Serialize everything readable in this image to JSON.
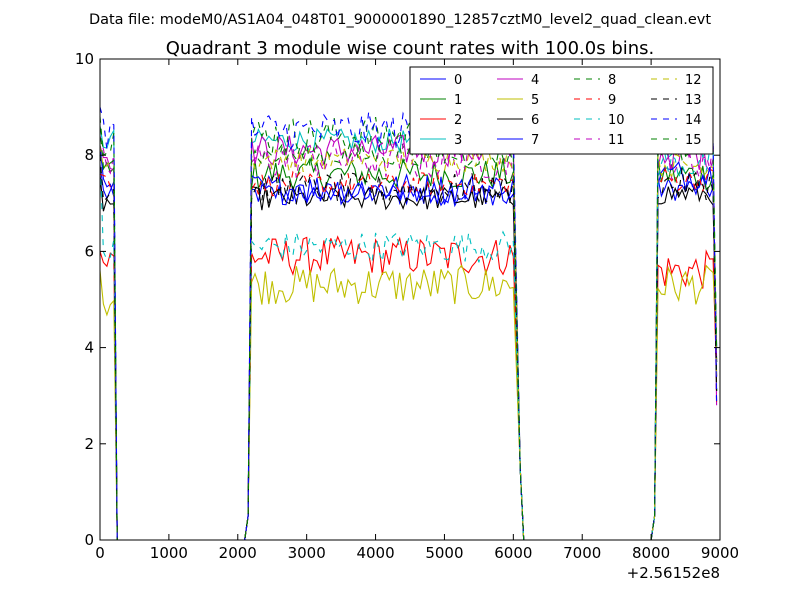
{
  "chart_data": {
    "type": "line",
    "suptitle": "Data file: modeM0/AS1A04_048T01_9000001890_12857cztM0_level2_quad_clean.evt",
    "title": "Quadrant 3 module wise count rates with 100.0s bins.",
    "xlabel": "",
    "ylabel": "",
    "x_offset_label": "+2.56152e8",
    "xlim": [
      0,
      9000
    ],
    "ylim": [
      0,
      10
    ],
    "xticks": [
      0,
      1000,
      2000,
      3000,
      4000,
      5000,
      6000,
      7000,
      8000,
      9000
    ],
    "yticks": [
      0,
      2,
      4,
      6,
      8,
      10
    ],
    "grid": false,
    "legend": {
      "position": "top-right",
      "columns": 4
    },
    "segments": [
      {
        "start": 0,
        "end": 200,
        "step": 50
      },
      {
        "start": 2200,
        "end": 6000,
        "step": 50
      },
      {
        "start": 8100,
        "end": 8900,
        "step": 50
      }
    ],
    "series": [
      {
        "name": "0",
        "color": "#0000ff",
        "dash": "solid",
        "levels": [
          7.8,
          7.2,
          7.2,
          7.3
        ]
      },
      {
        "name": "1",
        "color": "#008000",
        "dash": "solid",
        "levels": [
          8.0,
          7.6,
          7.6,
          7.6
        ]
      },
      {
        "name": "2",
        "color": "#ff0000",
        "dash": "solid",
        "levels": [
          6.0,
          5.8,
          5.9,
          5.6
        ]
      },
      {
        "name": "3",
        "color": "#00bfbf",
        "dash": "solid",
        "levels": [
          8.6,
          8.3,
          8.3,
          8.2
        ]
      },
      {
        "name": "4",
        "color": "#bf00bf",
        "dash": "solid",
        "levels": [
          8.2,
          8.0,
          8.1,
          8.0
        ]
      },
      {
        "name": "5",
        "color": "#bfbf00",
        "dash": "solid",
        "levels": [
          5.6,
          5.0,
          5.3,
          5.3
        ]
      },
      {
        "name": "6",
        "color": "#000000",
        "dash": "solid",
        "levels": [
          7.6,
          7.0,
          7.1,
          7.2
        ]
      },
      {
        "name": "7",
        "color": "#0000ff",
        "dash": "solid",
        "levels": [
          8.2,
          7.2,
          7.3,
          7.6
        ]
      },
      {
        "name": "8",
        "color": "#008000",
        "dash": "dashed",
        "levels": [
          8.8,
          8.4,
          8.4,
          8.3
        ]
      },
      {
        "name": "9",
        "color": "#ff0000",
        "dash": "dashed",
        "levels": [
          7.6,
          7.5,
          7.4,
          7.5
        ]
      },
      {
        "name": "10",
        "color": "#00bfbf",
        "dash": "dashed",
        "levels": [
          8.0,
          6.0,
          6.1,
          7.8
        ]
      },
      {
        "name": "11",
        "color": "#bf00bf",
        "dash": "dashed",
        "levels": [
          8.4,
          7.8,
          7.9,
          7.9
        ]
      },
      {
        "name": "12",
        "color": "#bfbf00",
        "dash": "dashed",
        "levels": [
          8.2,
          7.9,
          7.9,
          7.8
        ]
      },
      {
        "name": "13",
        "color": "#000000",
        "dash": "dashed",
        "levels": [
          8.0,
          7.3,
          7.3,
          7.4
        ]
      },
      {
        "name": "14",
        "color": "#0000ff",
        "dash": "dashed",
        "levels": [
          9.0,
          8.5,
          8.5,
          8.4
        ]
      },
      {
        "name": "15",
        "color": "#008000",
        "dash": "dashed",
        "levels": [
          8.6,
          8.0,
          8.0,
          8.2
        ]
      }
    ]
  }
}
